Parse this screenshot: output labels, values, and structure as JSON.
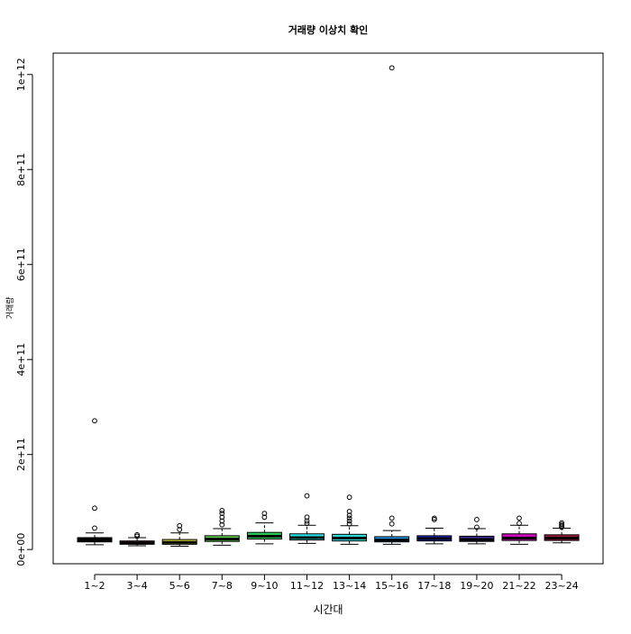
{
  "chart_data": {
    "type": "boxplot",
    "title": "거래량 이상치 확인",
    "xlabel": "시간대",
    "ylabel": "거래량",
    "ylim": [
      -30000000000,
      1045000000000
    ],
    "y_ticks": [
      0,
      200000000000,
      400000000000,
      600000000000,
      800000000000,
      1000000000000
    ],
    "y_tick_labels": [
      "0e+00",
      "2e+11",
      "4e+11",
      "6e+11",
      "8e+11",
      "1e+12"
    ],
    "categories": [
      "1~2",
      "3~4",
      "5~6",
      "7~8",
      "9~10",
      "11~12",
      "13~14",
      "15~16",
      "17~18",
      "19~20",
      "21~22",
      "23~24"
    ],
    "colors": [
      "#000000",
      "#DF536B",
      "#E3E339",
      "#61D04F",
      "#2AD35A",
      "#28E2E5",
      "#2DD9D9",
      "#2297E6",
      "#1F1FD6",
      "#3F2B8F",
      "#CD0BBC",
      "#A01A39"
    ],
    "boxes": [
      {
        "min": 10000000000,
        "q1": 16000000000,
        "median": 20000000000,
        "q3": 25000000000,
        "max": 35000000000,
        "outliers": [
          45000000000,
          87000000000,
          271000000000
        ]
      },
      {
        "min": 8000000000,
        "q1": 11000000000,
        "median": 14000000000,
        "q3": 18000000000,
        "max": 25000000000,
        "outliers": [
          28000000000,
          31000000000
        ]
      },
      {
        "min": 7000000000,
        "q1": 11000000000,
        "median": 15000000000,
        "q3": 21000000000,
        "max": 35000000000,
        "outliers": [
          42000000000,
          50000000000
        ]
      },
      {
        "min": 9000000000,
        "q1": 17000000000,
        "median": 22000000000,
        "q3": 29000000000,
        "max": 44000000000,
        "outliers": [
          52000000000,
          60000000000,
          68000000000,
          76000000000,
          82000000000
        ]
      },
      {
        "min": 12000000000,
        "q1": 22000000000,
        "median": 28000000000,
        "q3": 36000000000,
        "max": 56000000000,
        "outliers": [
          68000000000,
          76000000000
        ]
      },
      {
        "min": 13000000000,
        "q1": 20000000000,
        "median": 25000000000,
        "q3": 33000000000,
        "max": 51000000000,
        "outliers": [
          55000000000,
          60000000000,
          68000000000,
          113000000000
        ]
      },
      {
        "min": 11000000000,
        "q1": 18000000000,
        "median": 24000000000,
        "q3": 32000000000,
        "max": 50000000000,
        "outliers": [
          54000000000,
          60000000000,
          66000000000,
          72000000000,
          80000000000,
          110000000000
        ]
      },
      {
        "min": 11000000000,
        "q1": 16000000000,
        "median": 20000000000,
        "q3": 27000000000,
        "max": 40000000000,
        "outliers": [
          54000000000,
          66000000000,
          1014000000000
        ]
      },
      {
        "min": 12000000000,
        "q1": 18000000000,
        "median": 23000000000,
        "q3": 29000000000,
        "max": 45000000000,
        "outliers": [
          63000000000,
          66000000000
        ]
      },
      {
        "min": 12000000000,
        "q1": 17000000000,
        "median": 21000000000,
        "q3": 28000000000,
        "max": 44000000000,
        "outliers": [
          47000000000,
          63000000000
        ]
      },
      {
        "min": 11000000000,
        "q1": 19000000000,
        "median": 24000000000,
        "q3": 33000000000,
        "max": 51000000000,
        "outliers": [
          55000000000,
          66000000000
        ]
      },
      {
        "min": 14000000000,
        "q1": 19000000000,
        "median": 24000000000,
        "q3": 31000000000,
        "max": 45000000000,
        "outliers": [
          47000000000,
          50000000000,
          53000000000,
          56000000000
        ]
      }
    ]
  }
}
